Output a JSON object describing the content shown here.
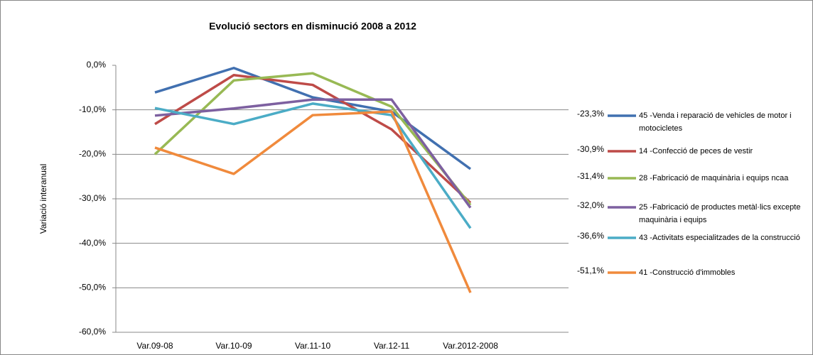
{
  "chart_data": {
    "type": "line",
    "title": "Evolució sectors  en disminució 2008 a 2012",
    "y_label": "Variació interanual",
    "categories": [
      "Var.09-08",
      "Var.10-09",
      "Var.11-10",
      "Var.12-11",
      "Var.2012-2008"
    ],
    "ylim": [
      -60,
      0
    ],
    "yticks": [
      {
        "value": 0,
        "label": "0,0%"
      },
      {
        "value": -10,
        "label": "-10,0%"
      },
      {
        "value": -20,
        "label": "-20,0%"
      },
      {
        "value": -30,
        "label": "-30,0%"
      },
      {
        "value": -40,
        "label": "-40,0%"
      },
      {
        "value": -50,
        "label": "-50,0%"
      },
      {
        "value": -60,
        "label": "-60,0%"
      }
    ],
    "grid": true,
    "legend": "right",
    "series": [
      {
        "name": "45 -Venda i reparació de vehicles de motor i motocicletes",
        "color": "#4170b0",
        "values": [
          -6.1,
          -0.6,
          -7.2,
          -10.4,
          -23.3
        ],
        "value_labels": [
          null,
          null,
          null,
          null,
          "-23,3%"
        ]
      },
      {
        "name": "14 -Confecció de peces de vestir",
        "color": "#be4b48",
        "values": [
          -13.2,
          -2.2,
          -4.4,
          -14.4,
          -30.9
        ],
        "value_labels": [
          null,
          null,
          null,
          null,
          "-30,9%"
        ]
      },
      {
        "name": "28 -Fabricació de maquinària i equips ncaa",
        "color": "#98b954",
        "values": [
          -20.0,
          -3.4,
          -1.8,
          -9.3,
          -31.4
        ],
        "value_labels": [
          null,
          null,
          null,
          null,
          "-31,4%"
        ]
      },
      {
        "name": "25 -Fabricació de productes metàl·lics excepte maquinària i equips",
        "color": "#7d60a0",
        "values": [
          -11.3,
          -9.7,
          -7.7,
          -7.7,
          -32.0
        ],
        "value_labels": [
          null,
          null,
          null,
          null,
          "-32,0%"
        ]
      },
      {
        "name": "43 -Activitats especialitzades de la construcció",
        "color": "#4bacc6",
        "values": [
          -9.6,
          -13.2,
          -8.6,
          -11.2,
          -36.6
        ],
        "value_labels": [
          null,
          null,
          null,
          null,
          "-36,6%"
        ]
      },
      {
        "name": "41 -Construcció d'immobles",
        "color": "#f08a3c",
        "values": [
          -18.5,
          -24.4,
          -11.2,
          -10.4,
          -51.1
        ],
        "value_labels": [
          null,
          null,
          null,
          null,
          "-51,1%"
        ]
      }
    ]
  }
}
